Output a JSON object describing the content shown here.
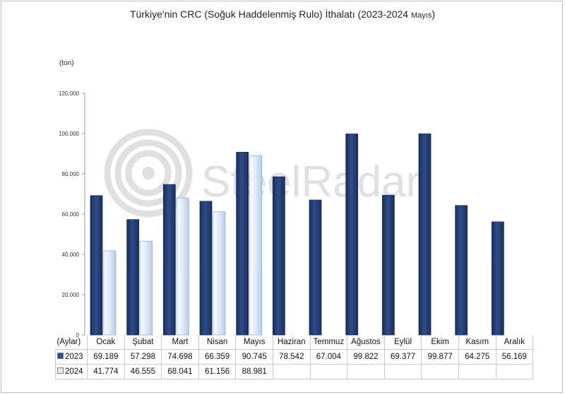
{
  "title_main": "Türkiye'nin CRC (Soğuk Haddelenmiş Rulo) İthalatı (2023-2024 ",
  "title_small": "Mayıs",
  "title_end": ")",
  "unit_label": "(ton)",
  "axis_category_label": "(Aylar)",
  "watermark": "SteelRadar",
  "colors": {
    "series_2023": "#2e4d8a",
    "series_2023_dark": "#1a2f5c",
    "series_2024": "#dde9f7",
    "series_2024_edge": "#8fb0d8"
  },
  "chart_data": {
    "type": "bar",
    "categories": [
      "Ocak",
      "Şubat",
      "Mart",
      "Nisan",
      "Mayıs",
      "Haziran",
      "Temmuz",
      "Ağustos",
      "Eylül",
      "Ekim",
      "Kasım",
      "Aralık"
    ],
    "series": [
      {
        "name": "2023",
        "values": [
          69189,
          57298,
          74698,
          66359,
          90745,
          78542,
          67004,
          99822,
          69377,
          99877,
          64275,
          56169
        ],
        "labels": [
          "69.189",
          "57.298",
          "74.698",
          "66.359",
          "90.745",
          "78.542",
          "67.004",
          "99.822",
          "69.377",
          "99.877",
          "64.275",
          "56.169"
        ]
      },
      {
        "name": "2024",
        "values": [
          41774,
          46555,
          68041,
          61156,
          88981,
          null,
          null,
          null,
          null,
          null,
          null,
          null
        ],
        "labels": [
          "41.774",
          "46.555",
          "68.041",
          "61.156",
          "88.981",
          "",
          "",
          "",
          "",
          "",
          "",
          ""
        ]
      }
    ],
    "ylim": [
      0,
      120000
    ],
    "yticks": [
      0,
      20000,
      40000,
      60000,
      80000,
      100000,
      120000
    ],
    "ytick_labels": [
      "0",
      "20.000",
      "40.000",
      "60.000",
      "80.000",
      "100.000",
      "120.000"
    ],
    "grid": false,
    "legend": "data table"
  }
}
